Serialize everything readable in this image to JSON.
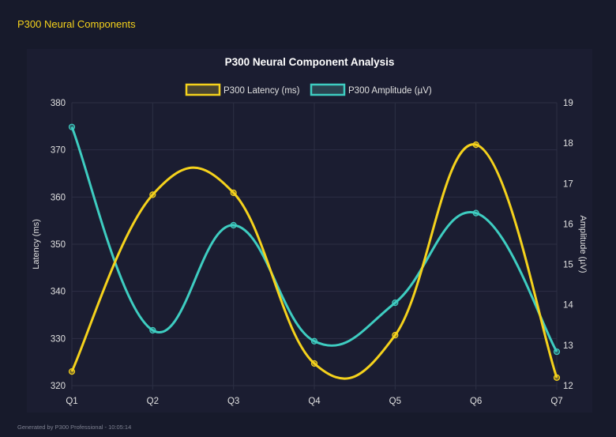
{
  "header": {
    "title": "P300 Neural Components"
  },
  "footer": {
    "text": "Generated by P300 Professional - 10:05:14"
  },
  "colors": {
    "latency": "#f5d21c",
    "amplitude": "#3ecdc1",
    "background": "#171a2b",
    "grid": "#2c2f44",
    "text": "#e0e0e0"
  },
  "chart_data": {
    "type": "line",
    "title": "P300 Neural Component Analysis",
    "categories": [
      "Q1",
      "Q2",
      "Q3",
      "Q4",
      "Q5",
      "Q6",
      "Q7"
    ],
    "series": [
      {
        "name": "P300 Latency (ms)",
        "axis": "left",
        "values": [
          323.0,
          360.5,
          360.9,
          324.7,
          330.7,
          371.1,
          321.7
        ]
      },
      {
        "name": "P300 Amplitude (µV)",
        "axis": "right",
        "values": [
          18.4,
          13.37,
          15.97,
          13.1,
          14.05,
          16.27,
          12.84
        ]
      }
    ],
    "ylabel_left": "Latency (ms)",
    "ylabel_right": "Amplitude (µV)",
    "ylim_left": [
      320,
      380
    ],
    "ylim_right": [
      12,
      19
    ],
    "yticks_left": [
      320,
      330,
      340,
      350,
      360,
      370,
      380
    ],
    "yticks_right": [
      12,
      13,
      14,
      15,
      16,
      17,
      18,
      19
    ],
    "grid": true,
    "legend": "top",
    "smooth": true
  }
}
